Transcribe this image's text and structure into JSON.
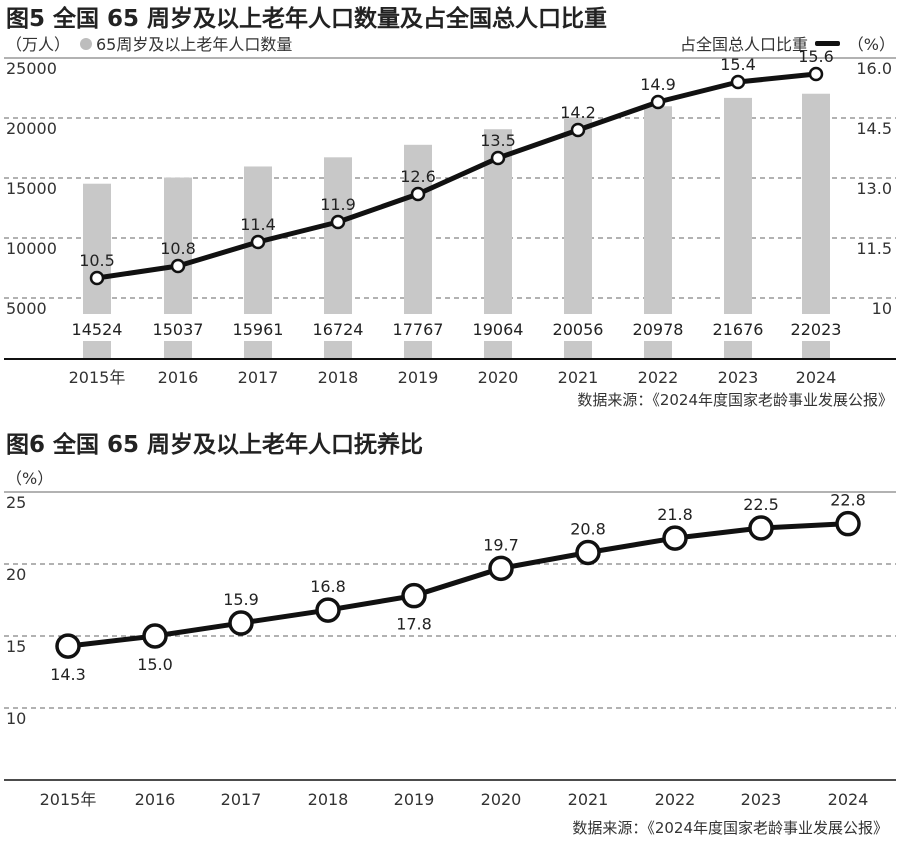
{
  "chart_data": [
    {
      "type": "bar+line",
      "title": "图5 全国 65 周岁及以上老年人口数量及占全国总人口比重",
      "left_unit": "（万人）",
      "bar_legend": "65周岁及以上老年人口数量",
      "line_legend": "占全国总人口比重",
      "right_unit": "（%）",
      "categories": [
        "2015年",
        "2016",
        "2017",
        "2018",
        "2019",
        "2020",
        "2021",
        "2022",
        "2023",
        "2024"
      ],
      "bar_values": [
        14524,
        15037,
        15961,
        16724,
        17767,
        19064,
        20056,
        20978,
        21676,
        22023
      ],
      "bar_labels": [
        "14524",
        "15037",
        "15961",
        "16724",
        "17767",
        "19064",
        "20056",
        "20978",
        "21676",
        "22023"
      ],
      "line_values": [
        10.5,
        10.8,
        11.4,
        11.9,
        12.6,
        13.5,
        14.2,
        14.9,
        15.4,
        15.6
      ],
      "line_labels": [
        "10.5",
        "10.8",
        "11.4",
        "11.9",
        "12.6",
        "13.5",
        "14.2",
        "14.9",
        "15.4",
        "15.6"
      ],
      "left_ticks": [
        "25000",
        "20000",
        "15000",
        "10000",
        "5000"
      ],
      "left_tick_values": [
        25000,
        20000,
        15000,
        10000,
        5000
      ],
      "right_ticks": [
        "16.0",
        "14.5",
        "13.0",
        "11.5",
        "10"
      ],
      "right_tick_values": [
        16.0,
        14.5,
        13.0,
        11.5,
        10
      ],
      "ylim_left": [
        0,
        25000
      ],
      "ylim_right": [
        7.5,
        16.0
      ],
      "grid": true,
      "source": "数据来源：《2024年度国家老龄事业发展公报》",
      "colors": {
        "bar": "#c8c8c8",
        "line": "#111111"
      }
    },
    {
      "type": "line",
      "title": "图6 全国 65 周岁及以上老年人口抚养比",
      "unit": "（%）",
      "categories": [
        "2015年",
        "2016",
        "2017",
        "2018",
        "2019",
        "2020",
        "2021",
        "2022",
        "2023",
        "2024"
      ],
      "values": [
        14.3,
        15.0,
        15.9,
        16.8,
        17.8,
        19.7,
        20.8,
        21.8,
        22.5,
        22.8
      ],
      "labels": [
        "14.3",
        "15.0",
        "15.9",
        "16.8",
        "17.8",
        "19.7",
        "20.8",
        "21.8",
        "22.5",
        "22.8"
      ],
      "y_ticks": [
        "25",
        "20",
        "15",
        "10"
      ],
      "y_tick_values": [
        25,
        20,
        15,
        10
      ],
      "ylim": [
        5,
        25
      ],
      "grid": true,
      "source": "数据来源：《2024年度国家老龄事业发展公报》",
      "colors": {
        "line": "#111111"
      }
    }
  ]
}
